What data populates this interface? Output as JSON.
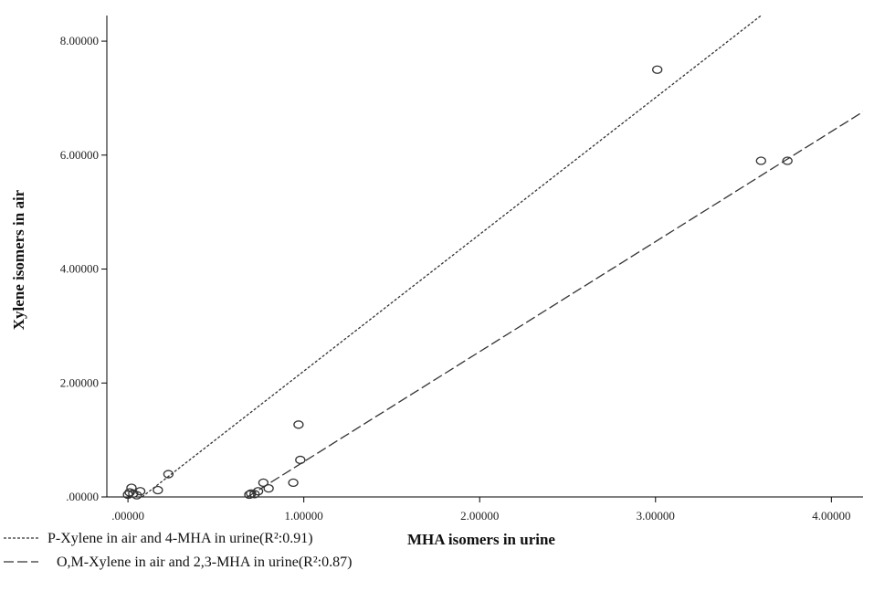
{
  "chart_data": {
    "type": "scatter",
    "title": "",
    "xlabel": "MHA isomers in urine",
    "ylabel": "Xylene isomers in air",
    "xlim": [
      -0.12,
      4.18
    ],
    "ylim": [
      0,
      8.45
    ],
    "x_ticks": [
      {
        "value": 0,
        "label": ".00000"
      },
      {
        "value": 1,
        "label": "1.00000"
      },
      {
        "value": 2,
        "label": "2.00000"
      },
      {
        "value": 3,
        "label": "3.00000"
      },
      {
        "value": 4,
        "label": "4.00000"
      }
    ],
    "y_ticks": [
      {
        "value": 0,
        "label": ".00000"
      },
      {
        "value": 2,
        "label": "2.00000"
      },
      {
        "value": 4,
        "label": "4.00000"
      },
      {
        "value": 6,
        "label": "6.00000"
      },
      {
        "value": 8,
        "label": "8.00000"
      }
    ],
    "grid": false,
    "legend_position": "bottom-left",
    "colors": {
      "marker": "#333333",
      "line": "#333333",
      "axis": "#000000"
    },
    "series": [
      {
        "name": "P-Xylene in air and 4-MHA in urine(R²:0.91)",
        "line_style": "dotted",
        "fit": {
          "x": [
            0.08,
            3.6
          ],
          "y": [
            0.0,
            8.45
          ]
        },
        "x": [
          0.0,
          0.01,
          0.02,
          0.03,
          0.05,
          0.07,
          0.17,
          0.23,
          3.01
        ],
        "y": [
          0.04,
          0.08,
          0.16,
          0.06,
          0.03,
          0.1,
          0.12,
          0.4,
          7.5
        ]
      },
      {
        "name": "O,M-Xylene in air and 2,3-MHA in urine(R²:0.87)",
        "line_style": "dashed",
        "fit": {
          "x": [
            0.68,
            4.2
          ],
          "y": [
            0.0,
            6.8
          ]
        },
        "x": [
          0.69,
          0.7,
          0.72,
          0.74,
          0.77,
          0.8,
          0.94,
          0.97,
          0.98,
          3.6,
          3.75
        ],
        "y": [
          0.04,
          0.06,
          0.05,
          0.1,
          0.25,
          0.15,
          0.25,
          1.27,
          0.65,
          5.9,
          5.9
        ]
      }
    ]
  }
}
